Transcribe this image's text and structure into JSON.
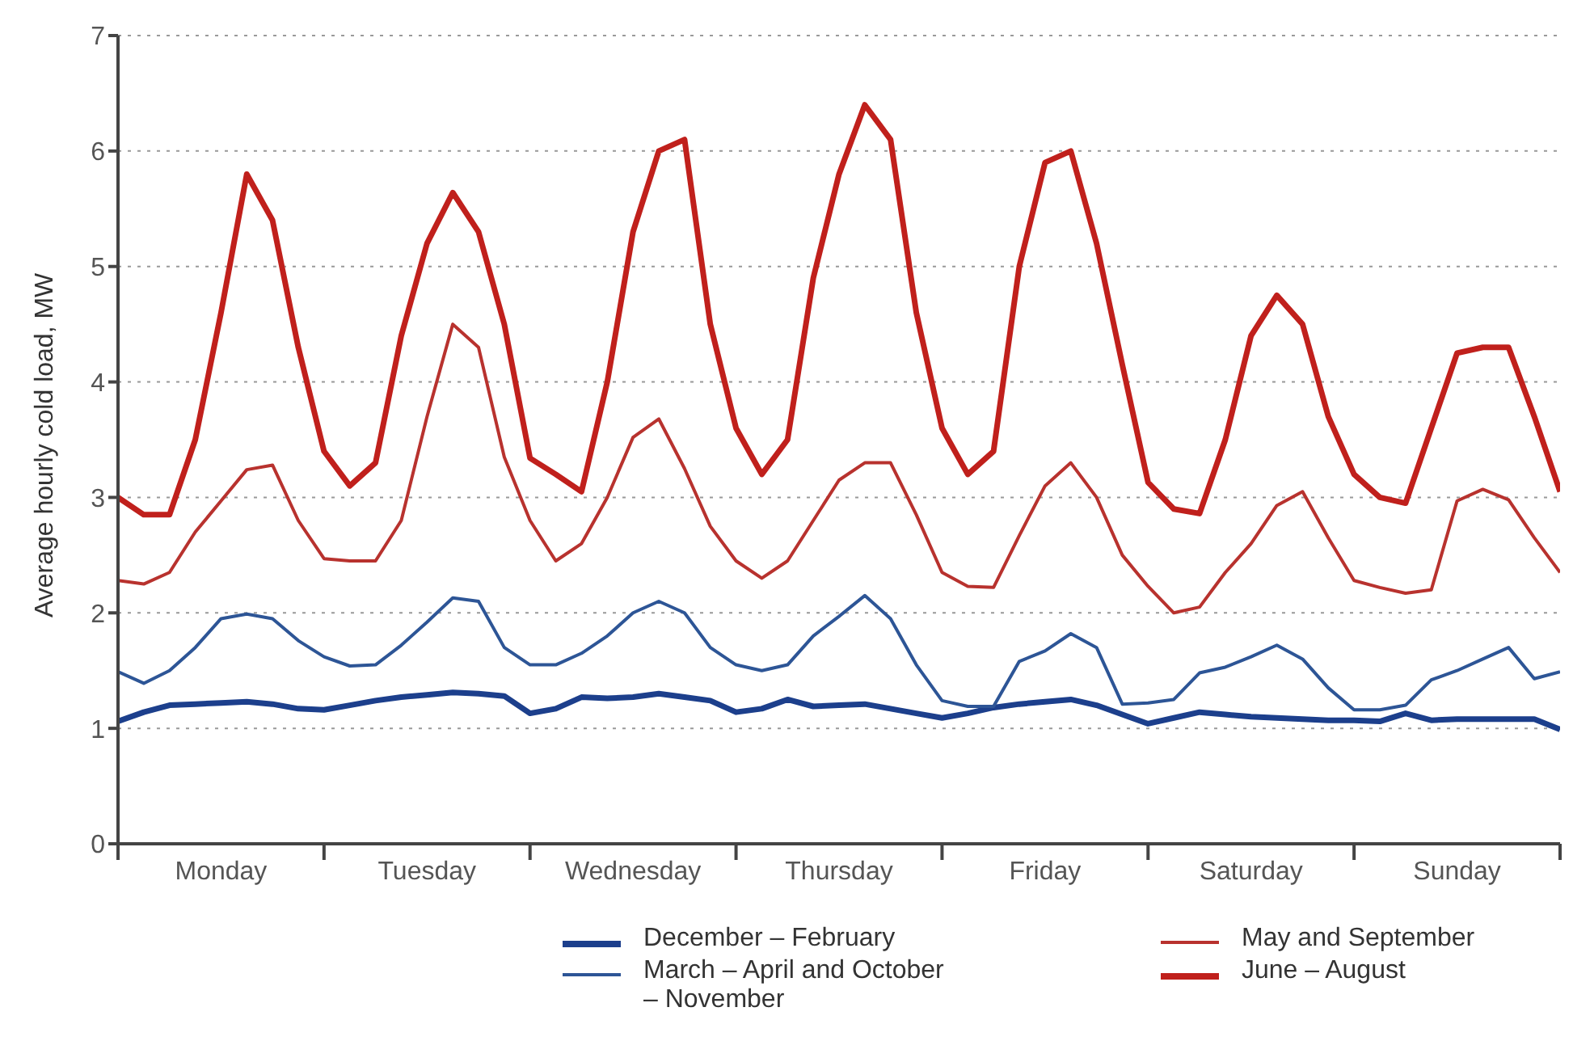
{
  "chart_data": {
    "type": "line",
    "ylabel": "Average hourly cold load, MW",
    "categories": [
      null,
      null,
      null,
      null,
      "Monday",
      null,
      null,
      null,
      null,
      null,
      null,
      null,
      "Tuesday",
      null,
      null,
      null,
      null,
      null,
      null,
      null,
      "Wednesday",
      null,
      null,
      null,
      null,
      null,
      null,
      null,
      "Thursday",
      null,
      null,
      null,
      null,
      null,
      null,
      null,
      "Friday",
      null,
      null,
      null,
      null,
      null,
      null,
      null,
      "Saturday",
      null,
      null,
      null,
      null,
      null,
      null,
      null,
      "Sunday",
      null,
      null,
      null,
      null
    ],
    "ylim": [
      0,
      7
    ],
    "yticks": [
      0,
      1,
      2,
      3,
      4,
      5,
      6,
      7
    ],
    "grid": "y",
    "legend": "bottom",
    "marker": "none",
    "series": [
      {
        "name": "December – February",
        "color": "#1c3f8c",
        "values": [
          1.06,
          1.14,
          1.2,
          1.21,
          1.22,
          1.23,
          1.21,
          1.17,
          1.16,
          1.2,
          1.24,
          1.27,
          1.29,
          1.31,
          1.3,
          1.28,
          1.13,
          1.17,
          1.27,
          1.26,
          1.27,
          1.3,
          1.27,
          1.24,
          1.14,
          1.17,
          1.25,
          1.19,
          1.2,
          1.21,
          1.17,
          1.13,
          1.09,
          1.13,
          1.18,
          1.21,
          1.23,
          1.25,
          1.2,
          1.12,
          1.04,
          1.09,
          1.14,
          1.12,
          1.1,
          1.09,
          1.08,
          1.07,
          1.07,
          1.06,
          1.13,
          1.07,
          1.08,
          1.08,
          1.08,
          1.08,
          0.99
        ]
      },
      {
        "name": "March – April and October – November",
        "color": "#2d5596",
        "values": [
          1.49,
          1.39,
          1.5,
          1.7,
          1.95,
          1.99,
          1.95,
          1.76,
          1.62,
          1.54,
          1.55,
          1.72,
          1.92,
          2.13,
          2.1,
          1.7,
          1.55,
          1.55,
          1.65,
          1.8,
          2.0,
          2.1,
          2.0,
          1.7,
          1.55,
          1.5,
          1.55,
          1.8,
          1.97,
          2.15,
          1.95,
          1.55,
          1.24,
          1.19,
          1.19,
          1.58,
          1.67,
          1.82,
          1.7,
          1.21,
          1.22,
          1.25,
          1.48,
          1.53,
          1.62,
          1.72,
          1.6,
          1.35,
          1.16,
          1.16,
          1.2,
          1.42,
          1.5,
          1.6,
          1.7,
          1.43,
          1.49
        ]
      },
      {
        "name": "May and September",
        "color": "#b8322e",
        "values": [
          2.28,
          2.25,
          2.35,
          2.7,
          2.97,
          3.24,
          3.28,
          2.8,
          2.47,
          2.45,
          2.45,
          2.8,
          3.7,
          4.5,
          4.3,
          3.35,
          2.8,
          2.45,
          2.6,
          3.0,
          3.52,
          3.68,
          3.25,
          2.75,
          2.45,
          2.3,
          2.45,
          2.8,
          3.15,
          3.3,
          3.3,
          2.85,
          2.35,
          2.23,
          2.22,
          2.67,
          3.1,
          3.3,
          3.0,
          2.5,
          2.23,
          2.0,
          2.05,
          2.35,
          2.6,
          2.93,
          3.05,
          2.65,
          2.28,
          2.22,
          2.17,
          2.2,
          2.97,
          3.07,
          2.98,
          2.65,
          2.35
        ]
      },
      {
        "name": "June – August",
        "color": "#c0201c",
        "values": [
          3.0,
          2.85,
          2.85,
          3.5,
          4.6,
          5.8,
          5.4,
          4.3,
          3.4,
          3.1,
          3.3,
          4.4,
          5.2,
          5.64,
          5.3,
          4.5,
          3.34,
          3.2,
          3.05,
          4.0,
          5.3,
          6.0,
          6.1,
          4.5,
          3.6,
          3.2,
          3.5,
          4.9,
          5.8,
          6.4,
          6.1,
          4.6,
          3.6,
          3.2,
          3.4,
          5.0,
          5.9,
          6.0,
          5.2,
          4.15,
          3.13,
          2.9,
          2.86,
          3.5,
          4.4,
          4.75,
          4.5,
          3.7,
          3.2,
          3.0,
          2.95,
          3.6,
          4.25,
          4.3,
          4.3,
          3.7,
          3.05
        ]
      }
    ]
  }
}
